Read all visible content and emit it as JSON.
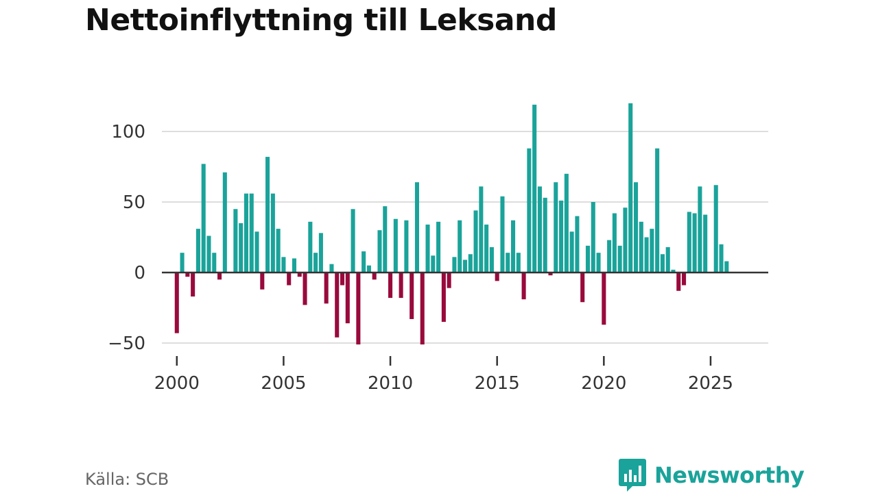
{
  "colors": {
    "positive": "#1aa39a",
    "negative": "#990a3c",
    "grid": "#dddddd",
    "zero_line": "#333333",
    "brand": "#1aa39a"
  },
  "footer": {
    "source": "Källa: SCB",
    "brand_name": "Newsworthy",
    "brand_icon": "bar-chart-speech-bubble-icon"
  },
  "chart_data": {
    "type": "bar",
    "title": "Nettoinflyttning till Leksand",
    "xlabel": "",
    "ylabel": "",
    "xlim": [
      1999.3,
      2027.7
    ],
    "ylim": [
      -60,
      130
    ],
    "y_ticks": [
      -50,
      0,
      50,
      100
    ],
    "y_tick_labels": [
      "−50",
      "0",
      "50",
      "100"
    ],
    "x_ticks": [
      2000,
      2005,
      2010,
      2015,
      2020,
      2025
    ],
    "x_tick_labels": [
      "2000",
      "2005",
      "2010",
      "2015",
      "2020",
      "2025"
    ],
    "grid": true,
    "frequency": "quarterly",
    "start_year": 2000,
    "values": [
      -43,
      14,
      -3,
      -17,
      31,
      77,
      26,
      14,
      -5,
      71,
      0,
      45,
      35,
      56,
      56,
      29,
      -12,
      82,
      56,
      31,
      11,
      -9,
      10,
      -3,
      -23,
      36,
      14,
      28,
      -22,
      6,
      -46,
      -9,
      -36,
      45,
      -51,
      15,
      5,
      -5,
      30,
      47,
      -18,
      38,
      -18,
      37,
      -33,
      64,
      -51,
      34,
      12,
      36,
      -35,
      -11,
      11,
      37,
      9,
      13,
      44,
      61,
      34,
      18,
      -6,
      54,
      14,
      37,
      14,
      -19,
      88,
      119,
      61,
      53,
      -2,
      64,
      51,
      70,
      29,
      40,
      -21,
      19,
      50,
      14,
      -37,
      23,
      42,
      19,
      46,
      120,
      64,
      36,
      25,
      31,
      88,
      13,
      18,
      2,
      -13,
      -9,
      43,
      42,
      61,
      41,
      0,
      62,
      20,
      8
    ]
  }
}
